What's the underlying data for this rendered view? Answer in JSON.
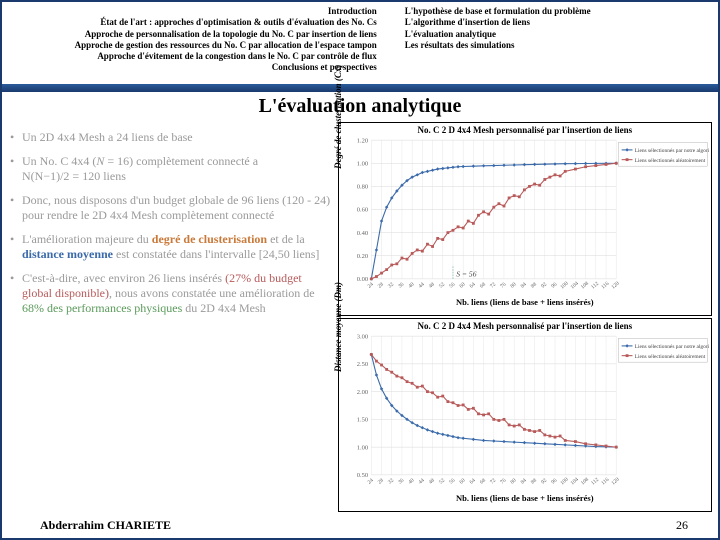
{
  "header": {
    "left_items": [
      "Introduction",
      "État de l'art : approches d'optimisation & outils d'évaluation des No. Cs",
      "Approche de personnalisation de la topologie du No. C par insertion de liens",
      "Approche de gestion des ressources du No. C par allocation de l'espace tampon",
      "Approche d'évitement de la congestion dans le No. C par contrôle de flux",
      "Conclusions et perspectives"
    ],
    "right_items": [
      "L'hypothèse de base et formulation du problème",
      "L'algorithme d'insertion de liens",
      "L'évaluation analytique",
      "Les résultats des simulations"
    ]
  },
  "title": "L'évaluation analytique",
  "bullets": {
    "b1a": "Un 2D 4x4 Mesh a 24 liens de base",
    "b2a": "Un No. C 4x4 (",
    "b2b": " = 16) complètement connecté a",
    "b2i": "N",
    "b2c": "N(N−1)/2 = 120 liens",
    "b3a": "Donc, nous disposons d'un budget globale de 96 liens (120 - 24) pour rendre le 2D 4x4 Mesh complètement connecté",
    "b4a": "L'amélioration majeure du ",
    "b4hl1": "degré de clusterisation",
    "b4b": " et de la ",
    "b4hl2": "distance moyenne",
    "b4c": " est constatée dans l'intervalle [24,50 liens]",
    "b5a": "C'est-à-dire, avec environ 26 liens insérés ",
    "b5hl1": "(27% du budget global disponible)",
    "b5b": ", nous avons constatée une amélioration de ",
    "b5hl2": "68% des performances physiques",
    "b5c": " du 2D 4x4 Mesh"
  },
  "chart1": {
    "title": "No. C 2 D 4x4 Mesh personnalisé par l'insertion de liens",
    "type": "line",
    "ylabel": "Degré de clusterisation (Cx)",
    "xlabel": "Nb. liens (liens de base + liens insérés)",
    "ylim": [
      0,
      1.2
    ],
    "ytick_step": 0.2,
    "xlim": [
      24,
      120
    ],
    "xtick_step": 4,
    "background_color": "#ffffff",
    "grid_color": "#d8d8d8",
    "annotation": "S = 56",
    "legend_items": [
      "Liens sélectionnés par notre algorithme",
      "Liens sélectionnés aléatoirement"
    ],
    "series": [
      {
        "name": "algo",
        "color": "#3a6aaa",
        "marker": "diamond",
        "values": [
          [
            24,
            0
          ],
          [
            26,
            0.25
          ],
          [
            28,
            0.5
          ],
          [
            30,
            0.62
          ],
          [
            32,
            0.7
          ],
          [
            34,
            0.76
          ],
          [
            36,
            0.81
          ],
          [
            38,
            0.85
          ],
          [
            40,
            0.88
          ],
          [
            42,
            0.9
          ],
          [
            44,
            0.92
          ],
          [
            46,
            0.93
          ],
          [
            48,
            0.94
          ],
          [
            50,
            0.95
          ],
          [
            52,
            0.955
          ],
          [
            54,
            0.96
          ],
          [
            56,
            0.965
          ],
          [
            58,
            0.97
          ],
          [
            60,
            0.972
          ],
          [
            64,
            0.975
          ],
          [
            68,
            0.978
          ],
          [
            72,
            0.98
          ],
          [
            76,
            0.983
          ],
          [
            80,
            0.985
          ],
          [
            84,
            0.988
          ],
          [
            88,
            0.99
          ],
          [
            92,
            0.992
          ],
          [
            96,
            0.994
          ],
          [
            100,
            0.996
          ],
          [
            104,
            0.997
          ],
          [
            108,
            0.998
          ],
          [
            112,
            0.999
          ],
          [
            116,
            0.9995
          ],
          [
            120,
            1.0
          ]
        ]
      },
      {
        "name": "random",
        "color": "#b85a5a",
        "marker": "square",
        "values": [
          [
            24,
            0
          ],
          [
            26,
            0.02
          ],
          [
            28,
            0.05
          ],
          [
            30,
            0.08
          ],
          [
            32,
            0.12
          ],
          [
            34,
            0.13
          ],
          [
            36,
            0.18
          ],
          [
            38,
            0.17
          ],
          [
            40,
            0.22
          ],
          [
            42,
            0.25
          ],
          [
            44,
            0.24
          ],
          [
            46,
            0.3
          ],
          [
            48,
            0.28
          ],
          [
            50,
            0.35
          ],
          [
            52,
            0.34
          ],
          [
            54,
            0.4
          ],
          [
            56,
            0.42
          ],
          [
            58,
            0.45
          ],
          [
            60,
            0.44
          ],
          [
            62,
            0.5
          ],
          [
            64,
            0.48
          ],
          [
            66,
            0.55
          ],
          [
            68,
            0.58
          ],
          [
            70,
            0.56
          ],
          [
            72,
            0.62
          ],
          [
            74,
            0.65
          ],
          [
            76,
            0.63
          ],
          [
            78,
            0.7
          ],
          [
            80,
            0.72
          ],
          [
            82,
            0.71
          ],
          [
            84,
            0.77
          ],
          [
            86,
            0.8
          ],
          [
            88,
            0.82
          ],
          [
            90,
            0.81
          ],
          [
            92,
            0.86
          ],
          [
            94,
            0.88
          ],
          [
            96,
            0.9
          ],
          [
            98,
            0.89
          ],
          [
            100,
            0.93
          ],
          [
            104,
            0.95
          ],
          [
            108,
            0.97
          ],
          [
            112,
            0.98
          ],
          [
            116,
            0.99
          ],
          [
            120,
            1.0
          ]
        ]
      }
    ]
  },
  "chart2": {
    "title": "No. C 2 D 4x4 Mesh personnalisé par l'insertion de liens",
    "type": "line",
    "ylabel": "Distance moyenne (Dm)",
    "xlabel": "Nb. liens (liens de base + liens insérés)",
    "ylim": [
      0.5,
      3.0
    ],
    "ytick_step": 0.5,
    "xlim": [
      24,
      120
    ],
    "xtick_step": 4,
    "background_color": "#ffffff",
    "grid_color": "#d8d8d8",
    "legend_items": [
      "Liens sélectionnés par notre algorithme",
      "Liens sélectionnés aléatoirement"
    ],
    "series": [
      {
        "name": "algo",
        "color": "#3a6aaa",
        "marker": "diamond",
        "values": [
          [
            24,
            2.67
          ],
          [
            26,
            2.3
          ],
          [
            28,
            2.05
          ],
          [
            30,
            1.88
          ],
          [
            32,
            1.75
          ],
          [
            34,
            1.65
          ],
          [
            36,
            1.57
          ],
          [
            38,
            1.5
          ],
          [
            40,
            1.44
          ],
          [
            42,
            1.39
          ],
          [
            44,
            1.35
          ],
          [
            46,
            1.31
          ],
          [
            48,
            1.28
          ],
          [
            50,
            1.25
          ],
          [
            52,
            1.23
          ],
          [
            54,
            1.21
          ],
          [
            56,
            1.19
          ],
          [
            58,
            1.17
          ],
          [
            60,
            1.16
          ],
          [
            64,
            1.14
          ],
          [
            68,
            1.12
          ],
          [
            72,
            1.11
          ],
          [
            76,
            1.1
          ],
          [
            80,
            1.09
          ],
          [
            84,
            1.08
          ],
          [
            88,
            1.07
          ],
          [
            92,
            1.06
          ],
          [
            96,
            1.05
          ],
          [
            100,
            1.04
          ],
          [
            104,
            1.03
          ],
          [
            108,
            1.02
          ],
          [
            112,
            1.01
          ],
          [
            116,
            1.005
          ],
          [
            120,
            1.0
          ]
        ]
      },
      {
        "name": "random",
        "color": "#b85a5a",
        "marker": "square",
        "values": [
          [
            24,
            2.67
          ],
          [
            26,
            2.55
          ],
          [
            28,
            2.48
          ],
          [
            30,
            2.4
          ],
          [
            32,
            2.35
          ],
          [
            34,
            2.28
          ],
          [
            36,
            2.25
          ],
          [
            38,
            2.18
          ],
          [
            40,
            2.15
          ],
          [
            42,
            2.08
          ],
          [
            44,
            2.1
          ],
          [
            46,
            2.0
          ],
          [
            48,
            1.98
          ],
          [
            50,
            1.9
          ],
          [
            52,
            1.92
          ],
          [
            54,
            1.82
          ],
          [
            56,
            1.8
          ],
          [
            58,
            1.75
          ],
          [
            60,
            1.76
          ],
          [
            62,
            1.68
          ],
          [
            64,
            1.7
          ],
          [
            66,
            1.6
          ],
          [
            68,
            1.58
          ],
          [
            70,
            1.6
          ],
          [
            72,
            1.5
          ],
          [
            74,
            1.48
          ],
          [
            76,
            1.5
          ],
          [
            78,
            1.4
          ],
          [
            80,
            1.38
          ],
          [
            82,
            1.4
          ],
          [
            84,
            1.32
          ],
          [
            86,
            1.3
          ],
          [
            88,
            1.28
          ],
          [
            90,
            1.3
          ],
          [
            92,
            1.22
          ],
          [
            94,
            1.2
          ],
          [
            96,
            1.18
          ],
          [
            98,
            1.2
          ],
          [
            100,
            1.12
          ],
          [
            104,
            1.1
          ],
          [
            108,
            1.06
          ],
          [
            112,
            1.04
          ],
          [
            116,
            1.02
          ],
          [
            120,
            1.0
          ]
        ]
      }
    ]
  },
  "footer": {
    "name": "Abderrahim CHARIETE",
    "page": "26"
  }
}
